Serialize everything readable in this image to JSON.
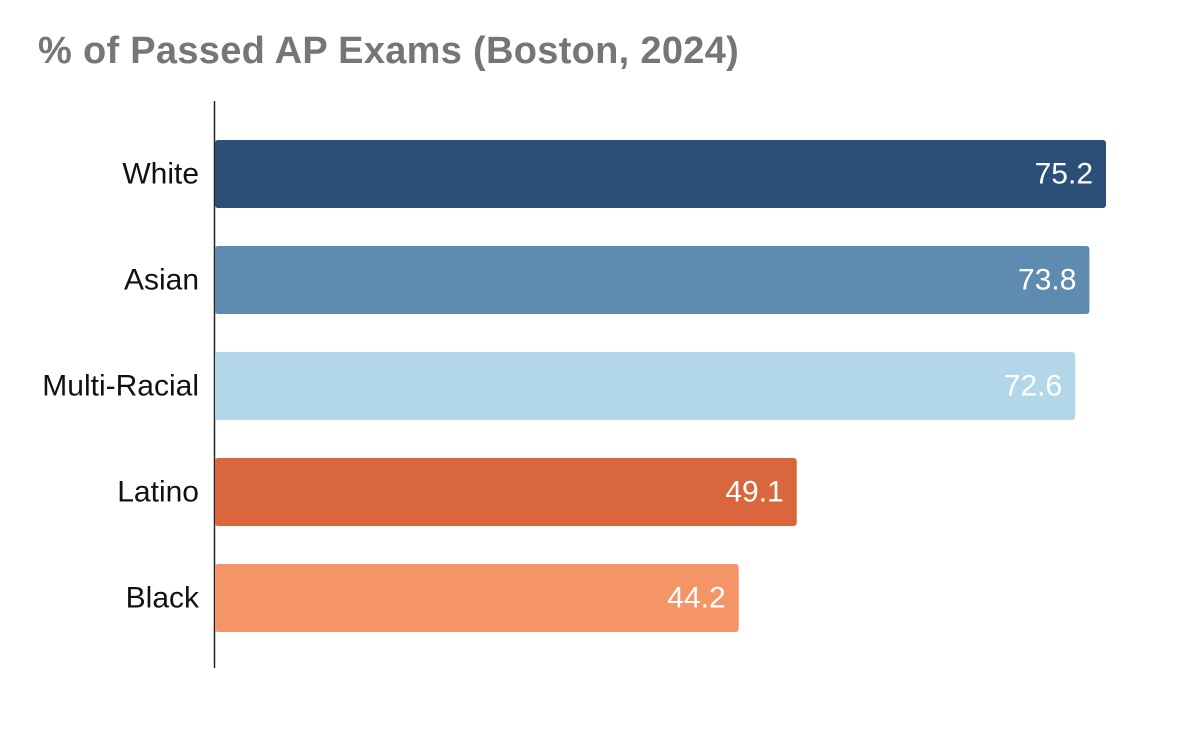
{
  "chart_data": {
    "type": "bar",
    "orientation": "horizontal",
    "title": "% of Passed AP Exams (Boston, 2024)",
    "xlabel": "",
    "ylabel": "",
    "categories": [
      "White",
      "Asian",
      "Multi-Racial",
      "Latino",
      "Black"
    ],
    "values": [
      75.2,
      73.8,
      72.6,
      49.1,
      44.2
    ],
    "value_labels": [
      "75.2",
      "73.8",
      "72.6",
      "49.1",
      "44.2"
    ],
    "colors": [
      "#2c4f77",
      "#5f8bb0",
      "#b2d7e8",
      "#d9663d",
      "#f59466"
    ],
    "xlim": [
      0,
      75.2
    ],
    "grid": false,
    "legend": "none"
  }
}
